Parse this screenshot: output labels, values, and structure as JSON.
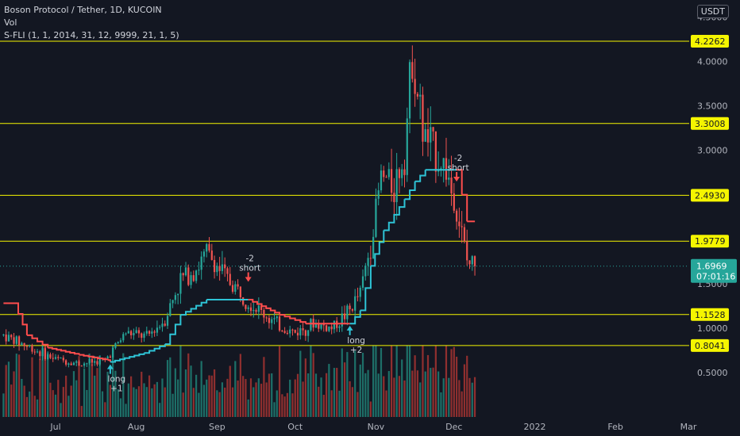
{
  "header": {
    "title": "Boson Protocol / Tether, 1D, KUCOIN",
    "volume_label": "Vol",
    "indicator_label": "S-FLI (1, 1, 2014, 31, 12, 9999, 21, 1, 5)",
    "currency": "USDT"
  },
  "colors": {
    "background": "#131722",
    "up": "#26a69a",
    "down": "#ef5350",
    "level_line": "#f5f500",
    "trail_up": "#2ec4d6",
    "trail_down": "#ff4d4d",
    "vol_up": "#1d6f68",
    "vol_down": "#8f2f2f"
  },
  "chart_data": {
    "type": "candlestick",
    "x_axis": {
      "type": "date",
      "tick_labels": [
        "Jul",
        "Aug",
        "Sep",
        "Oct",
        "Nov",
        "Dec",
        "2022",
        "Feb",
        "Mar"
      ],
      "tick_dates": [
        "2021-07-01",
        "2021-08-01",
        "2021-09-01",
        "2021-10-01",
        "2021-11-01",
        "2021-12-01",
        "2022-01-01",
        "2022-02-01",
        "2022-03-01"
      ]
    },
    "y_axis": {
      "ticks": [
        0.5,
        1.0,
        1.5,
        2.0,
        2.5,
        3.0,
        3.5,
        4.0,
        4.5
      ],
      "tick_labels": [
        "0.5000",
        "1.0000",
        "1.5000",
        "2.0000",
        "2.5000",
        "3.0000",
        "3.5000",
        "4.0000",
        "4.5000"
      ],
      "range": [
        0.1,
        4.6
      ]
    },
    "last_price": {
      "value": 1.6969,
      "label": "1.6969",
      "countdown": "07:01:16"
    },
    "levels": [
      {
        "value": 4.2262,
        "label": "4.2262"
      },
      {
        "value": 3.3008,
        "label": "3.3008"
      },
      {
        "value": 2.493,
        "label": "2.4930"
      },
      {
        "value": 1.9779,
        "label": "1.9779"
      },
      {
        "value": 1.1528,
        "label": "1.1528"
      },
      {
        "value": 0.8041,
        "label": "0.8041"
      }
    ],
    "price_waypoints": [
      [
        "2021-06-11",
        0.92
      ],
      [
        "2021-06-20",
        0.8
      ],
      [
        "2021-06-30",
        0.66
      ],
      [
        "2021-07-10",
        0.6
      ],
      [
        "2021-07-20",
        0.64
      ],
      [
        "2021-07-28",
        0.95
      ],
      [
        "2021-08-05",
        0.9
      ],
      [
        "2021-08-12",
        1.1
      ],
      [
        "2021-08-18",
        1.55
      ],
      [
        "2021-08-25",
        1.7
      ],
      [
        "2021-08-28",
        1.85
      ],
      [
        "2021-09-05",
        1.55
      ],
      [
        "2021-09-15",
        1.25
      ],
      [
        "2021-09-25",
        1.02
      ],
      [
        "2021-10-01",
        0.95
      ],
      [
        "2021-10-08",
        1.05
      ],
      [
        "2021-10-15",
        1.0
      ],
      [
        "2021-10-22",
        1.2
      ],
      [
        "2021-10-26",
        1.4
      ],
      [
        "2021-10-30",
        1.95
      ],
      [
        "2021-11-03",
        2.7
      ],
      [
        "2021-11-08",
        2.6
      ],
      [
        "2021-11-12",
        3.0
      ],
      [
        "2021-11-15",
        4.1
      ],
      [
        "2021-11-19",
        3.2
      ],
      [
        "2021-11-23",
        3.0
      ],
      [
        "2021-11-28",
        2.8
      ],
      [
        "2021-11-30",
        2.55
      ],
      [
        "2021-12-03",
        2.2
      ],
      [
        "2021-12-06",
        1.75
      ],
      [
        "2021-12-09",
        1.6969
      ]
    ],
    "trail_stop_waypoints": [
      [
        "2021-06-11",
        1.28,
        "down"
      ],
      [
        "2021-06-15",
        1.28,
        "down"
      ],
      [
        "2021-06-20",
        0.92,
        "down"
      ],
      [
        "2021-06-28",
        0.78,
        "down"
      ],
      [
        "2021-07-10",
        0.7,
        "down"
      ],
      [
        "2021-07-21",
        0.64,
        "down"
      ],
      [
        "2021-07-22",
        0.62,
        "up"
      ],
      [
        "2021-08-04",
        0.72,
        "up"
      ],
      [
        "2021-08-12",
        0.82,
        "up"
      ],
      [
        "2021-08-18",
        1.15,
        "up"
      ],
      [
        "2021-08-28",
        1.32,
        "up"
      ],
      [
        "2021-09-12",
        1.32,
        "up"
      ],
      [
        "2021-09-13",
        1.32,
        "down"
      ],
      [
        "2021-09-25",
        1.15,
        "down"
      ],
      [
        "2021-10-05",
        1.05,
        "down"
      ],
      [
        "2021-10-21",
        1.05,
        "down"
      ],
      [
        "2021-10-22",
        1.05,
        "up"
      ],
      [
        "2021-10-26",
        1.2,
        "up"
      ],
      [
        "2021-10-30",
        1.7,
        "up"
      ],
      [
        "2021-11-04",
        2.1,
        "up"
      ],
      [
        "2021-11-12",
        2.45,
        "up"
      ],
      [
        "2021-11-16",
        2.65,
        "up"
      ],
      [
        "2021-11-20",
        2.78,
        "up"
      ],
      [
        "2021-12-01",
        2.78,
        "up"
      ],
      [
        "2021-12-02",
        2.78,
        "down"
      ],
      [
        "2021-12-04",
        2.5,
        "down"
      ],
      [
        "2021-12-06",
        2.2,
        "down"
      ],
      [
        "2021-12-09",
        2.2,
        "down"
      ]
    ],
    "signals": [
      {
        "date": "2021-07-22",
        "direction": "up",
        "label": [
          "long",
          "+1"
        ]
      },
      {
        "date": "2021-09-13",
        "direction": "down",
        "label": [
          "-2",
          "short"
        ]
      },
      {
        "date": "2021-10-22",
        "direction": "up",
        "label": [
          "long",
          "+2"
        ]
      },
      {
        "date": "2021-12-02",
        "direction": "down",
        "label": [
          "-2",
          "short"
        ]
      }
    ],
    "grid": false
  }
}
